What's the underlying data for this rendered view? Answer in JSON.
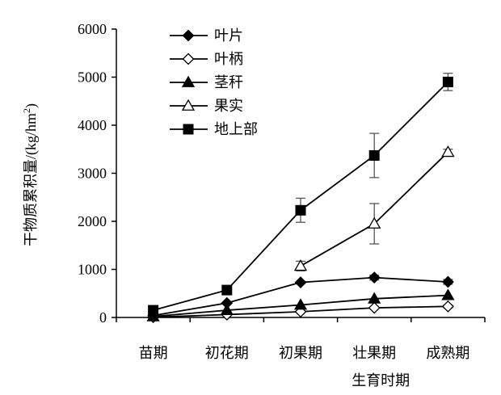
{
  "chart_data": {
    "type": "line",
    "categories": [
      "苗期",
      "初花期",
      "初果期",
      "壮果期",
      "成熟期"
    ],
    "xlabel": "生育时期",
    "ylabel": {
      "prefix": "干物质累积量",
      "unit": "/(kg/hm",
      "sup": "2",
      "suffix": ")"
    },
    "ylim": [
      0,
      6000
    ],
    "yticks": [
      0,
      1000,
      2000,
      3000,
      4000,
      5000,
      6000
    ],
    "legend_position": "top-left",
    "series": [
      {
        "name": "叶片",
        "marker": "diamond-filled",
        "values": [
          40,
          300,
          730,
          830,
          740
        ],
        "errors": [
          null,
          null,
          null,
          50,
          50
        ]
      },
      {
        "name": "叶柄",
        "marker": "diamond-open",
        "values": [
          5,
          60,
          120,
          200,
          230
        ],
        "errors": [
          null,
          null,
          null,
          null,
          30
        ]
      },
      {
        "name": "茎秆",
        "marker": "triangle-filled",
        "values": [
          20,
          150,
          260,
          390,
          460
        ],
        "errors": [
          null,
          null,
          null,
          null,
          null
        ]
      },
      {
        "name": "果实",
        "marker": "triangle-open",
        "values": [
          null,
          null,
          1070,
          1950,
          3440
        ],
        "errors": [
          null,
          null,
          100,
          420,
          60
        ]
      },
      {
        "name": "地上部",
        "marker": "square-filled",
        "values": [
          150,
          570,
          2230,
          3370,
          4900
        ],
        "errors": [
          null,
          null,
          250,
          460,
          180
        ]
      }
    ]
  }
}
